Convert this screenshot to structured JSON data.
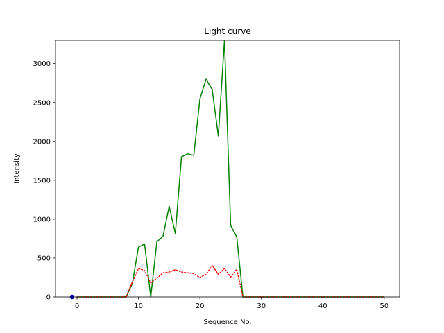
{
  "chart_data": {
    "type": "line",
    "title": "Light curve",
    "xlabel": "Sequence No.",
    "ylabel": "Intensity",
    "xlim": [
      -3.5,
      52.5
    ],
    "ylim": [
      0,
      3300
    ],
    "x_ticks": [
      0,
      10,
      20,
      30,
      40,
      50
    ],
    "y_ticks": [
      0,
      500,
      1000,
      1500,
      2000,
      2500,
      3000
    ],
    "grid": false,
    "series": [
      {
        "style": "solid",
        "color": "#008000",
        "x": [
          0,
          1,
          2,
          3,
          4,
          5,
          6,
          7,
          8,
          9,
          10,
          11,
          12,
          13,
          14,
          15,
          16,
          17,
          18,
          19,
          20,
          21,
          22,
          23,
          24,
          25,
          26,
          27,
          28,
          29,
          30,
          31,
          32,
          33,
          34,
          35,
          36,
          37,
          38,
          39,
          40,
          41,
          42,
          43,
          44,
          45,
          46,
          47,
          48,
          49,
          50
        ],
        "y": [
          0,
          0,
          0,
          0,
          0,
          0,
          0,
          0,
          0,
          170,
          640,
          680,
          0,
          710,
          780,
          1165,
          815,
          1800,
          1840,
          1820,
          2545,
          2800,
          2665,
          2070,
          3300,
          920,
          770,
          0,
          0,
          0,
          0,
          0,
          0,
          0,
          0,
          0,
          0,
          0,
          0,
          0,
          0,
          0,
          0,
          0,
          0,
          0,
          0,
          0,
          0,
          0,
          0
        ]
      },
      {
        "style": "dotted",
        "color": "#ff0000",
        "x": [
          0,
          1,
          2,
          3,
          4,
          5,
          6,
          7,
          8,
          9,
          10,
          11,
          12,
          13,
          14,
          15,
          16,
          17,
          18,
          19,
          20,
          21,
          22,
          23,
          24,
          25,
          26,
          27,
          28,
          29,
          30,
          31,
          32,
          33,
          34,
          35,
          36,
          37,
          38,
          39,
          40,
          41,
          42,
          43,
          44,
          45,
          46,
          47,
          48,
          49,
          50
        ],
        "y": [
          0,
          0,
          0,
          0,
          0,
          0,
          0,
          0,
          0,
          190,
          365,
          340,
          180,
          240,
          310,
          320,
          350,
          320,
          310,
          300,
          250,
          290,
          405,
          290,
          365,
          255,
          355,
          0,
          0,
          0,
          0,
          0,
          0,
          0,
          0,
          0,
          0,
          0,
          0,
          0,
          0,
          0,
          0,
          0,
          0,
          0,
          0,
          0,
          0,
          0,
          0
        ]
      },
      {
        "style": "marker",
        "color": "#0000cc",
        "x": [
          -0.8
        ],
        "y": [
          0
        ]
      }
    ]
  }
}
